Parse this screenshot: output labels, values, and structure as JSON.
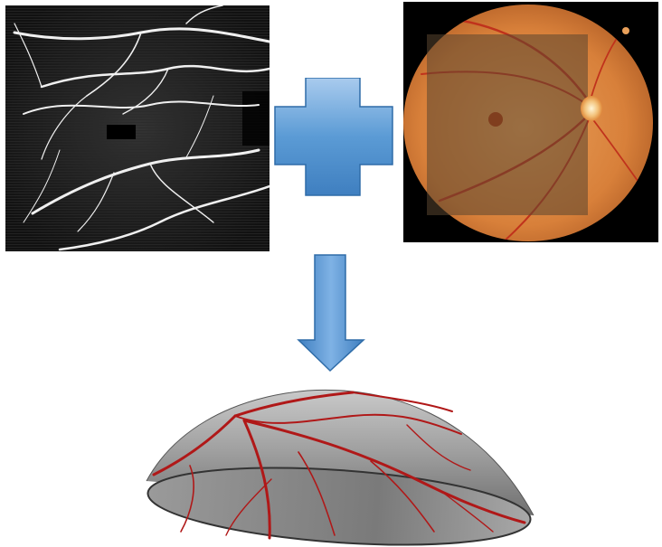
{
  "diagram": {
    "panels": [
      {
        "id": "oct-angiogram",
        "kind": "image"
      },
      {
        "id": "fundus-photo",
        "kind": "image"
      },
      {
        "id": "retina-3d-model",
        "kind": "image"
      }
    ],
    "connectors": [
      {
        "id": "combine",
        "shape": "plus",
        "color": "#5b9bd5"
      },
      {
        "id": "result",
        "shape": "down-arrow",
        "color": "#5b9bd5"
      }
    ],
    "colors": {
      "accent": "#5b9bd5",
      "fundus": "#e08a3c",
      "vessel": "#b01818",
      "dome": "#8c8c8c"
    }
  }
}
